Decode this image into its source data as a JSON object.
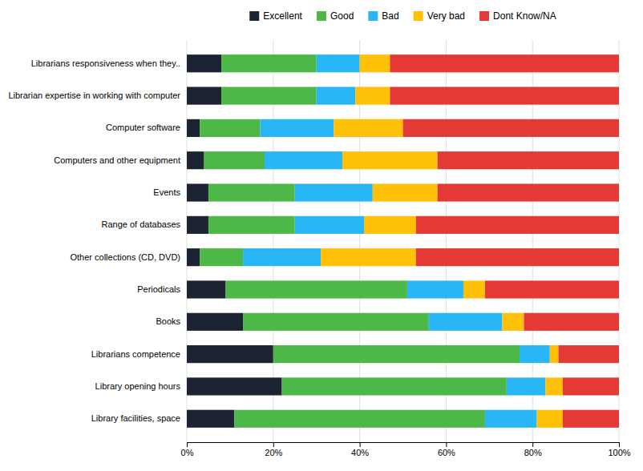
{
  "chart_data": {
    "type": "bar",
    "orientation": "horizontal",
    "stacked": true,
    "categories": [
      "Librarians responsiveness when they..",
      "Librarian expertise in working with computer",
      "Computer software",
      "Computers and other equipment",
      "Events",
      "Range of databases",
      "Other collections (CD, DVD)",
      "Periodicals",
      "Books",
      "Librarians competence",
      "Library opening hours",
      "Library facilities, space"
    ],
    "series": [
      {
        "name": "Excellent",
        "color": "#1c2333",
        "values": [
          8,
          8,
          3,
          4,
          5,
          5,
          3,
          9,
          13,
          20,
          22,
          11
        ]
      },
      {
        "name": "Good",
        "color": "#4db848",
        "values": [
          22,
          22,
          14,
          14,
          20,
          20,
          10,
          42,
          43,
          57,
          52,
          58
        ]
      },
      {
        "name": "Bad",
        "color": "#29b6f6",
        "values": [
          10,
          9,
          17,
          18,
          18,
          16,
          18,
          13,
          17,
          7,
          9,
          12
        ]
      },
      {
        "name": "Very bad",
        "color": "#ffc107",
        "values": [
          7,
          8,
          16,
          22,
          15,
          12,
          22,
          5,
          5,
          2,
          4,
          6
        ]
      },
      {
        "name": "Dont Know/NA",
        "color": "#e53935",
        "values": [
          53,
          53,
          50,
          42,
          42,
          47,
          47,
          31,
          22,
          14,
          13,
          13
        ]
      }
    ],
    "xlim": [
      0,
      100
    ],
    "xticks": [
      {
        "value": 0,
        "label": "0%"
      },
      {
        "value": 20,
        "label": "20%"
      },
      {
        "value": 40,
        "label": "40%"
      },
      {
        "value": 60,
        "label": "60%"
      },
      {
        "value": 80,
        "label": "80%"
      },
      {
        "value": 100,
        "label": "100%"
      }
    ],
    "grid": true,
    "legend": "top"
  }
}
